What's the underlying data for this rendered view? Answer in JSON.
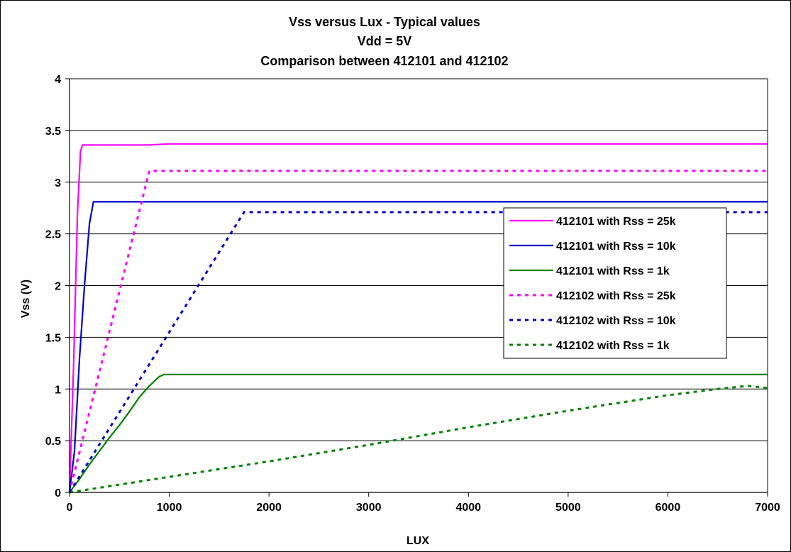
{
  "chart_data": {
    "type": "line",
    "title_lines": [
      "Vss versus Lux - Typical values",
      "Vdd = 5V",
      "Comparison between 412101 and 412102"
    ],
    "xlabel": "LUX",
    "ylabel": "Vss (V)",
    "xlim": [
      0,
      7000
    ],
    "ylim": [
      0,
      4
    ],
    "x_ticks": [
      "0",
      "1000",
      "2000",
      "3000",
      "4000",
      "5000",
      "6000",
      "7000"
    ],
    "y_ticks": [
      "0",
      "0.5",
      "1",
      "1.5",
      "2",
      "2.5",
      "3",
      "3.5",
      "4"
    ],
    "grid": "horizontal",
    "legend_position": "right",
    "series": [
      {
        "name": "412101 with Rss = 25k",
        "color": "#ff00ff",
        "dash": "solid",
        "points": [
          [
            0,
            0
          ],
          [
            40,
            1.2
          ],
          [
            80,
            2.7
          ],
          [
            110,
            3.3
          ],
          [
            130,
            3.36
          ],
          [
            500,
            3.36
          ],
          [
            800,
            3.36
          ],
          [
            1000,
            3.37
          ],
          [
            7000,
            3.37
          ]
        ]
      },
      {
        "name": "412101 with Rss = 10k",
        "color": "#0000cc",
        "dash": "solid",
        "points": [
          [
            0,
            0
          ],
          [
            50,
            0.4
          ],
          [
            100,
            1.3
          ],
          [
            150,
            2.0
          ],
          [
            200,
            2.6
          ],
          [
            240,
            2.81
          ],
          [
            1000,
            2.81
          ],
          [
            7000,
            2.81
          ]
        ]
      },
      {
        "name": "412101 with Rss = 1k",
        "color": "#008000",
        "dash": "solid",
        "points": [
          [
            0,
            0
          ],
          [
            100,
            0.13
          ],
          [
            200,
            0.27
          ],
          [
            300,
            0.4
          ],
          [
            400,
            0.53
          ],
          [
            500,
            0.65
          ],
          [
            600,
            0.78
          ],
          [
            700,
            0.92
          ],
          [
            800,
            1.03
          ],
          [
            900,
            1.12
          ],
          [
            950,
            1.14
          ],
          [
            2000,
            1.14
          ],
          [
            7000,
            1.14
          ]
        ]
      },
      {
        "name": "412102 with Rss = 25k",
        "color": "#ff00ff",
        "dash": "dotted",
        "points": [
          [
            0,
            0
          ],
          [
            800,
            3.11
          ],
          [
            7000,
            3.11
          ]
        ]
      },
      {
        "name": "412102 with Rss = 10k",
        "color": "#0000cc",
        "dash": "dotted",
        "points": [
          [
            0,
            0
          ],
          [
            1750,
            2.71
          ],
          [
            7000,
            2.71
          ]
        ]
      },
      {
        "name": "412102 with Rss = 1k",
        "color": "#008000",
        "dash": "dotted",
        "points": [
          [
            0,
            0
          ],
          [
            1000,
            0.15
          ],
          [
            2000,
            0.3
          ],
          [
            3000,
            0.46
          ],
          [
            4000,
            0.63
          ],
          [
            5000,
            0.79
          ],
          [
            6000,
            0.94
          ],
          [
            6500,
            1.0
          ],
          [
            6800,
            1.03
          ],
          [
            7000,
            1.01
          ]
        ]
      }
    ]
  }
}
